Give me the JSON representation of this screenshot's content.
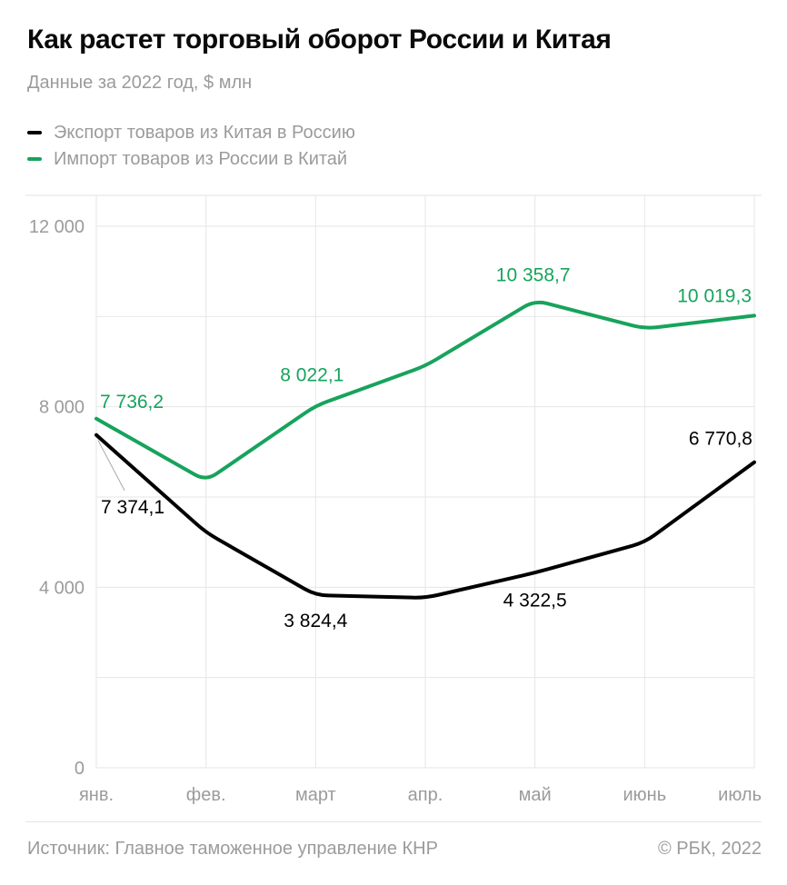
{
  "chart_data": {
    "type": "line",
    "title": "Как растет торговый оборот России и Китая",
    "subtitle": "Данные за 2022 год, $ млн",
    "x_categories": [
      "янв.",
      "фев.",
      "март",
      "апр.",
      "май",
      "июнь",
      "июль"
    ],
    "ylim": [
      0,
      12000
    ],
    "y_grid_step": 2000,
    "grid": true,
    "legend_position": "top",
    "y_ticks": [
      {
        "value": 0,
        "label": "0"
      },
      {
        "value": 4000,
        "label": "4 000"
      },
      {
        "value": 8000,
        "label": "8 000"
      },
      {
        "value": 12000,
        "label": "12 000"
      }
    ],
    "series": [
      {
        "name": "Экспорт товаров из Китая в Россию",
        "color": "#000000",
        "values": [
          7374.1,
          5215,
          3824.4,
          3765,
          4322.5,
          4995,
          6770.8
        ],
        "labels": [
          {
            "index": 0,
            "text": "7 374,1",
            "anchor": "start",
            "dx": 5,
            "dy": 86,
            "leader": {
              "x1": 2,
              "y1": 6,
              "x2": 31,
              "y2": 61
            }
          },
          {
            "index": 2,
            "text": "3 824,4",
            "anchor": "middle",
            "dx": 0,
            "dy": 35
          },
          {
            "index": 4,
            "text": "4 322,5",
            "anchor": "middle",
            "dx": 0,
            "dy": 37
          },
          {
            "index": 6,
            "text": "6 770,8",
            "anchor": "end",
            "dx": -2,
            "dy": -19
          }
        ]
      },
      {
        "name": "Импорт товаров из России в Китай",
        "color": "#17a35c",
        "values": [
          7736.2,
          6356,
          8022.1,
          8905,
          10358.7,
          9730,
          10019.3
        ],
        "labels": [
          {
            "index": 0,
            "text": "7 736,2",
            "anchor": "start",
            "dx": 4,
            "dy": -12
          },
          {
            "index": 2,
            "text": "8 022,1",
            "anchor": "middle",
            "dx": -4,
            "dy": -27
          },
          {
            "index": 4,
            "text": "10 358,7",
            "anchor": "middle",
            "dx": -2,
            "dy": -21
          },
          {
            "index": 6,
            "text": "10 019,3",
            "anchor": "end",
            "dx": -3,
            "dy": -15
          }
        ]
      }
    ]
  },
  "footer": {
    "source": "Источник: Главное таможенное управление КНР",
    "copyright": "© РБК, 2022"
  },
  "colors": {
    "text_gray": "#9b9b9b",
    "grid": "#e6e6e6",
    "frame": "#e3e3e3",
    "leader": "#a8a8a8"
  }
}
